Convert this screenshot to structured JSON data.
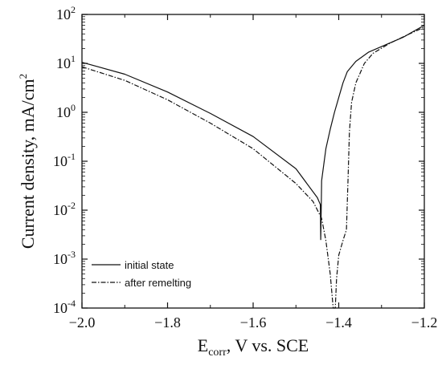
{
  "chart_data": {
    "type": "line",
    "title": "",
    "xlabel": {
      "main": "E",
      "sub": "corr",
      "rest": ", V vs. SCE"
    },
    "ylabel": {
      "main": "Current density, mA/cm",
      "sup": "2"
    },
    "xlim": [
      -2.0,
      -1.2
    ],
    "ylim_log10": [
      -4,
      2
    ],
    "y_scale": "log",
    "x_ticks": [
      {
        "value": -2.0,
        "label": "−2.0"
      },
      {
        "value": -1.8,
        "label": "−1.8"
      },
      {
        "value": -1.6,
        "label": "−1.6"
      },
      {
        "value": -1.4,
        "label": "−1.4"
      },
      {
        "value": -1.2,
        "label": "−1.2"
      }
    ],
    "y_ticks": [
      {
        "exp": 2,
        "base": "10",
        "sup": "2"
      },
      {
        "exp": 1,
        "base": "10",
        "sup": "1"
      },
      {
        "exp": 0,
        "base": "10",
        "sup": "0"
      },
      {
        "exp": -1,
        "base": "10",
        "sup": "-1"
      },
      {
        "exp": -2,
        "base": "10",
        "sup": "-2"
      },
      {
        "exp": -3,
        "base": "10",
        "sup": "-3"
      },
      {
        "exp": -4,
        "base": "10",
        "sup": "-4"
      }
    ],
    "legend": {
      "placement": "bottom-left",
      "entries": [
        {
          "label": "initial state",
          "style": "solid"
        },
        {
          "label": "after remelting",
          "style": "dashdot"
        }
      ]
    },
    "series": [
      {
        "name": "initial state",
        "style": "solid",
        "color": "#111111",
        "points": [
          [
            -2.0,
            10.5
          ],
          [
            -1.9,
            6.0
          ],
          [
            -1.8,
            2.6
          ],
          [
            -1.7,
            0.95
          ],
          [
            -1.6,
            0.32
          ],
          [
            -1.5,
            0.07
          ],
          [
            -1.45,
            0.018
          ],
          [
            -1.443,
            0.013
          ],
          [
            -1.442,
            0.0025
          ],
          [
            -1.441,
            0.01
          ],
          [
            -1.44,
            0.04
          ],
          [
            -1.43,
            0.18
          ],
          [
            -1.42,
            0.45
          ],
          [
            -1.41,
            1.0
          ],
          [
            -1.4,
            2.0
          ],
          [
            -1.39,
            4.0
          ],
          [
            -1.38,
            6.8
          ],
          [
            -1.36,
            11.0
          ],
          [
            -1.33,
            17.0
          ],
          [
            -1.3,
            22.0
          ],
          [
            -1.25,
            34.0
          ],
          [
            -1.2,
            60.0
          ]
        ]
      },
      {
        "name": "after remelting",
        "style": "dashdot",
        "color": "#111111",
        "points": [
          [
            -2.0,
            8.5
          ],
          [
            -1.9,
            4.5
          ],
          [
            -1.8,
            1.8
          ],
          [
            -1.7,
            0.6
          ],
          [
            -1.6,
            0.18
          ],
          [
            -1.5,
            0.035
          ],
          [
            -1.46,
            0.015
          ],
          [
            -1.44,
            0.0068
          ],
          [
            -1.43,
            0.0024
          ],
          [
            -1.42,
            0.0005
          ],
          [
            -1.413,
            9e-05
          ],
          [
            -1.408,
            9e-05
          ],
          [
            -1.405,
            0.0004
          ],
          [
            -1.4,
            0.0012
          ],
          [
            -1.39,
            0.0024
          ],
          [
            -1.382,
            0.004
          ],
          [
            -1.378,
            0.05
          ],
          [
            -1.375,
            0.4
          ],
          [
            -1.37,
            1.6
          ],
          [
            -1.36,
            4.0
          ],
          [
            -1.34,
            10.0
          ],
          [
            -1.32,
            16.0
          ],
          [
            -1.28,
            26.0
          ],
          [
            -1.24,
            38.0
          ],
          [
            -1.2,
            55.0
          ]
        ]
      }
    ]
  }
}
